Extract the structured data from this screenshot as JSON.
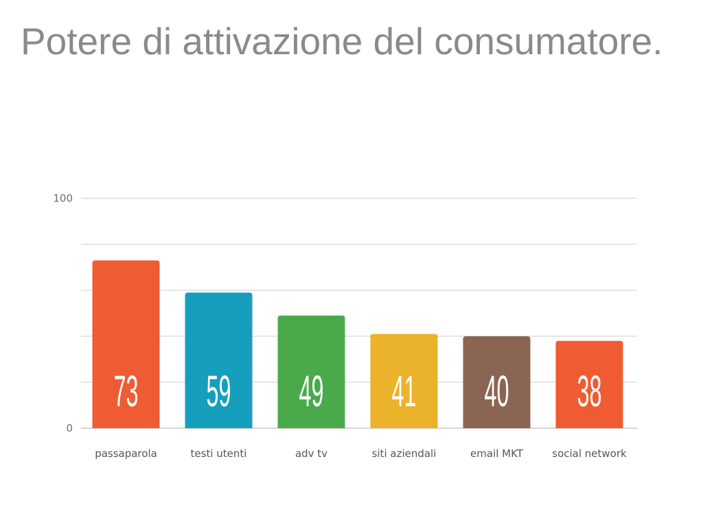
{
  "title": "Potere di attivazione del consumatore.",
  "chart_data": {
    "type": "bar",
    "categories": [
      "passaparola",
      "testi utenti",
      "adv tv",
      "siti aziendali",
      "email MKT",
      "social network"
    ],
    "values": [
      73,
      59,
      49,
      41,
      40,
      38
    ],
    "colors": [
      "#ef5c33",
      "#169fbd",
      "#4aaa4b",
      "#ebb22b",
      "#8b6553",
      "#ef5c33"
    ],
    "ylim": [
      0,
      100
    ],
    "yticks": [
      "100",
      "0"
    ],
    "gridline_count": 6,
    "grid": true,
    "data_labels": true,
    "legend": "none"
  }
}
